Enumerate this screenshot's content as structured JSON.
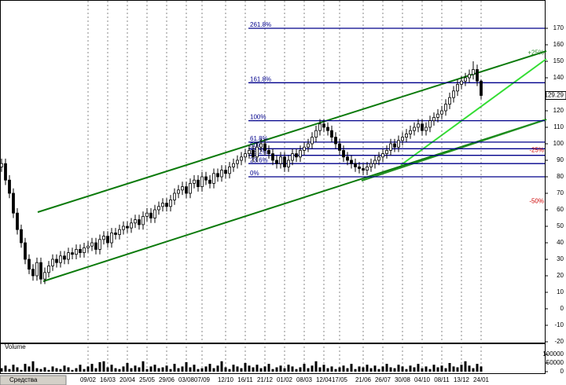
{
  "chart_data": {
    "type": "candlestick",
    "open": [
      86,
      88,
      78,
      70,
      58,
      48,
      40,
      30,
      24,
      20,
      28,
      18,
      22,
      26,
      30,
      28,
      32,
      30,
      34,
      33,
      36,
      34,
      37,
      38,
      40,
      36,
      42,
      44,
      40,
      46,
      45,
      48,
      50,
      49,
      52,
      54,
      51,
      56,
      58,
      55,
      60,
      62,
      64,
      62,
      66,
      70,
      72,
      74,
      70,
      76,
      78,
      74,
      80,
      78,
      76,
      82,
      80,
      84,
      82,
      86,
      88,
      90,
      92,
      94,
      96,
      92,
      98,
      100,
      96,
      94,
      90,
      88,
      92,
      86,
      90,
      94,
      92,
      96,
      98,
      100,
      104,
      108,
      112,
      110,
      108,
      104,
      100,
      96,
      92,
      90,
      88,
      86,
      85,
      84,
      86,
      88,
      90,
      92,
      94,
      96,
      100,
      98,
      102,
      104,
      106,
      108,
      110,
      112,
      108,
      110,
      114,
      116,
      118,
      120,
      124,
      128,
      132,
      136,
      138,
      140,
      142,
      145,
      138
    ],
    "high": [
      91,
      91,
      81,
      73,
      61,
      51,
      43,
      33,
      27,
      31,
      31,
      25,
      29,
      33,
      33,
      35,
      35,
      37,
      37,
      39,
      39,
      40,
      41,
      43,
      43,
      45,
      47,
      47,
      49,
      49,
      51,
      53,
      53,
      55,
      57,
      57,
      59,
      61,
      61,
      63,
      65,
      67,
      67,
      69,
      73,
      75,
      77,
      77,
      79,
      81,
      81,
      83,
      83,
      81,
      85,
      85,
      87,
      87,
      89,
      91,
      93,
      95,
      97,
      99,
      99,
      101,
      103,
      103,
      99,
      97,
      93,
      95,
      95,
      93,
      97,
      97,
      99,
      101,
      103,
      107,
      111,
      115,
      115,
      113,
      111,
      107,
      103,
      99,
      95,
      93,
      91,
      89,
      88,
      89,
      91,
      93,
      95,
      97,
      99,
      103,
      103,
      105,
      107,
      109,
      111,
      113,
      115,
      115,
      113,
      117,
      119,
      121,
      123,
      127,
      131,
      135,
      139,
      141,
      143,
      145,
      150,
      148,
      139
    ],
    "low": [
      83,
      75,
      67,
      55,
      45,
      37,
      27,
      21,
      17,
      17,
      15,
      15,
      19,
      23,
      25,
      25,
      27,
      27,
      30,
      30,
      31,
      31,
      34,
      35,
      33,
      33,
      39,
      37,
      37,
      42,
      42,
      45,
      46,
      46,
      49,
      48,
      48,
      53,
      52,
      52,
      57,
      59,
      59,
      59,
      63,
      67,
      69,
      67,
      67,
      73,
      71,
      71,
      75,
      73,
      73,
      77,
      77,
      79,
      79,
      83,
      85,
      87,
      89,
      91,
      89,
      89,
      95,
      93,
      91,
      87,
      85,
      85,
      83,
      83,
      87,
      89,
      89,
      93,
      95,
      97,
      101,
      105,
      107,
      105,
      101,
      97,
      93,
      89,
      87,
      85,
      83,
      82,
      81,
      81,
      83,
      85,
      87,
      89,
      91,
      93,
      95,
      95,
      99,
      101,
      103,
      105,
      107,
      105,
      105,
      107,
      111,
      113,
      115,
      117,
      121,
      125,
      129,
      133,
      135,
      137,
      139,
      135,
      127
    ],
    "close": [
      88,
      78,
      70,
      58,
      48,
      40,
      30,
      24,
      20,
      28,
      18,
      22,
      26,
      30,
      28,
      32,
      30,
      34,
      33,
      36,
      34,
      37,
      38,
      40,
      36,
      42,
      44,
      40,
      46,
      45,
      48,
      50,
      49,
      52,
      54,
      51,
      56,
      58,
      55,
      60,
      62,
      64,
      62,
      66,
      70,
      72,
      74,
      70,
      76,
      78,
      74,
      80,
      78,
      76,
      82,
      80,
      84,
      82,
      86,
      88,
      90,
      92,
      94,
      96,
      92,
      98,
      100,
      96,
      94,
      90,
      88,
      92,
      86,
      90,
      94,
      92,
      96,
      98,
      100,
      104,
      108,
      112,
      110,
      108,
      104,
      100,
      96,
      92,
      90,
      88,
      86,
      85,
      84,
      86,
      88,
      90,
      92,
      94,
      96,
      100,
      98,
      102,
      104,
      106,
      108,
      110,
      112,
      108,
      110,
      114,
      116,
      118,
      120,
      124,
      128,
      132,
      136,
      138,
      140,
      142,
      145,
      138,
      129.29
    ],
    "xticks": [
      {
        "value": 22,
        "label": "09/02"
      },
      {
        "value": 27,
        "label": "16/03"
      },
      {
        "value": 32,
        "label": "20/04"
      },
      {
        "value": 37,
        "label": "25/05"
      },
      {
        "value": 42,
        "label": "29/06"
      },
      {
        "value": 47,
        "label": "03/08"
      },
      {
        "value": 51,
        "label": "07/09"
      },
      {
        "value": 57,
        "label": "12/10"
      },
      {
        "value": 62,
        "label": "16/11"
      },
      {
        "value": 67,
        "label": "21/12"
      },
      {
        "value": 72,
        "label": "01/02"
      },
      {
        "value": 77,
        "label": "08/03"
      },
      {
        "value": 82,
        "label": "12/04"
      },
      {
        "value": 86,
        "label": "17/05"
      },
      {
        "value": 92,
        "label": "21/06"
      },
      {
        "value": 97,
        "label": "26/07"
      },
      {
        "value": 102,
        "label": "30/08"
      },
      {
        "value": 107,
        "label": "04/10"
      },
      {
        "value": 112,
        "label": "08/11"
      },
      {
        "value": 117,
        "label": "13/12"
      },
      {
        "value": 122,
        "label": "24/01"
      }
    ],
    "ylim": [
      -20,
      180
    ],
    "yticks": [
      -20,
      -10,
      0,
      10,
      20,
      30,
      40,
      50,
      60,
      70,
      80,
      90,
      100,
      110,
      120,
      130,
      140,
      150,
      160,
      170
    ],
    "levels": [
      {
        "label": "261.8%",
        "value": 170
      },
      {
        "label": "161.8%",
        "value": 137
      },
      {
        "label": "100%",
        "value": 114
      },
      {
        "label": "61.8%",
        "value": 101
      },
      {
        "label": "50%",
        "value": 97
      },
      {
        "label": "38.2%",
        "value": 93
      },
      {
        "label": "23.6%",
        "value": 88
      },
      {
        "label": "0%",
        "value": 80
      }
    ],
    "level_color": "#00008b",
    "annotations": [
      {
        "label": "+25%",
        "value": 155,
        "color": "#2e8b2e"
      },
      {
        "label": "-25%",
        "value": 96,
        "color": "#cc0000"
      },
      {
        "label": "-50%",
        "value": 65,
        "color": "#cc0000"
      }
    ],
    "volume": {
      "label": "Volume",
      "values": [
        20000,
        35000,
        15000,
        40000,
        25000,
        10000,
        45000,
        30000,
        60000,
        20000,
        15000,
        25000,
        10000,
        30000,
        20000,
        15000,
        35000,
        25000,
        10000,
        20000,
        40000,
        15000,
        30000,
        45000,
        20000,
        55000,
        60000,
        25000,
        40000,
        20000,
        15000,
        30000,
        50000,
        20000,
        35000,
        25000,
        60000,
        15000,
        30000,
        40000,
        20000,
        25000,
        35000,
        15000,
        45000,
        20000,
        30000,
        55000,
        25000,
        40000,
        15000,
        20000,
        30000,
        45000,
        20000,
        35000,
        60000,
        25000,
        15000,
        40000,
        30000,
        20000,
        50000,
        35000,
        25000,
        40000,
        20000,
        30000,
        45000,
        15000,
        25000,
        35000,
        20000,
        40000,
        30000,
        15000,
        25000,
        45000,
        20000,
        35000,
        60000,
        25000,
        40000,
        20000,
        30000,
        15000,
        25000,
        35000,
        20000,
        45000,
        15000,
        30000,
        25000,
        40000,
        20000,
        35000,
        15000,
        30000,
        45000,
        25000,
        20000,
        40000,
        30000,
        15000,
        35000,
        25000,
        45000,
        20000,
        30000,
        15000,
        40000,
        25000,
        35000,
        20000,
        50000,
        30000,
        25000,
        40000,
        60000,
        35000,
        20000,
        45000,
        30000
      ],
      "ylim": [
        0,
        150000
      ],
      "yticks": [
        0,
        50000,
        100000
      ],
      "color": "#000000"
    }
  },
  "ui": {
    "taskbar": "Средства"
  }
}
